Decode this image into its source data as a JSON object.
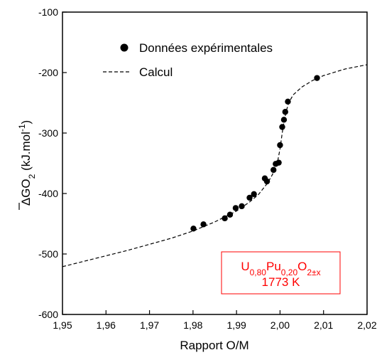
{
  "chart_data": {
    "type": "scatter",
    "title": "",
    "xlabel": "Rapport O/M",
    "ylabel": {
      "delta": "Δ",
      "g": "G",
      "o": "O",
      "sub": "2",
      "rest": " (kJ.mol",
      "sup": "-1",
      "close": ")"
    },
    "xlim": [
      1.95,
      2.02
    ],
    "ylim": [
      -600,
      -100
    ],
    "xticks": [
      1.95,
      1.96,
      1.97,
      1.98,
      1.99,
      2.0,
      2.01,
      2.02
    ],
    "xtick_labels": [
      "1,95",
      "1,96",
      "1,97",
      "1,98",
      "1,99",
      "2,00",
      "2,01",
      "2,02"
    ],
    "yticks": [
      -600,
      -500,
      -400,
      -300,
      -200,
      -100
    ],
    "ytick_labels": [
      "-600",
      "-500",
      "-400",
      "-300",
      "-200",
      "-100"
    ],
    "grid": false,
    "legend_position": "top-left",
    "series": [
      {
        "name": "Données expérimentales",
        "kind": "points",
        "points": [
          [
            1.9801,
            -458
          ],
          [
            1.9824,
            -451
          ],
          [
            1.9873,
            -441
          ],
          [
            1.9885,
            -435
          ],
          [
            1.9898,
            -424
          ],
          [
            1.9912,
            -421
          ],
          [
            1.993,
            -407
          ],
          [
            1.994,
            -401
          ],
          [
            1.9965,
            -375
          ],
          [
            1.997,
            -380
          ],
          [
            1.9985,
            -361
          ],
          [
            1.999,
            -351
          ],
          [
            1.9997,
            -349
          ],
          [
            2.0,
            -320
          ],
          [
            2.0005,
            -290
          ],
          [
            2.0009,
            -278
          ],
          [
            2.0012,
            -265
          ],
          [
            2.0018,
            -248
          ],
          [
            2.0085,
            -209
          ]
        ]
      },
      {
        "name": "Calcul",
        "kind": "dashed-line",
        "points": [
          [
            1.95,
            -521
          ],
          [
            1.955,
            -512
          ],
          [
            1.96,
            -503
          ],
          [
            1.965,
            -494
          ],
          [
            1.97,
            -484
          ],
          [
            1.975,
            -474
          ],
          [
            1.98,
            -462
          ],
          [
            1.985,
            -447
          ],
          [
            1.99,
            -429
          ],
          [
            1.993,
            -414
          ],
          [
            1.995,
            -402
          ],
          [
            1.997,
            -384
          ],
          [
            1.998,
            -372
          ],
          [
            1.999,
            -358
          ],
          [
            1.9995,
            -345
          ],
          [
            2.0,
            -326
          ],
          [
            2.0005,
            -300
          ],
          [
            2.001,
            -278
          ],
          [
            2.0015,
            -262
          ],
          [
            2.002,
            -250
          ],
          [
            2.003,
            -237
          ],
          [
            2.005,
            -224
          ],
          [
            2.0075,
            -213
          ],
          [
            2.01,
            -205
          ],
          [
            2.015,
            -194
          ],
          [
            2.02,
            -187
          ]
        ]
      }
    ],
    "annotation": {
      "text_main": "U",
      "sub1": "0,80",
      "pu": "Pu",
      "sub2": "0,20",
      "o": "O",
      "sub3": "2±x",
      "temperature": "1773 K"
    },
    "colors": {
      "axes": "#000000",
      "points": "#000000",
      "line": "#000000",
      "annotation_text": "#ff0000",
      "annotation_border": "#ff0000"
    }
  }
}
